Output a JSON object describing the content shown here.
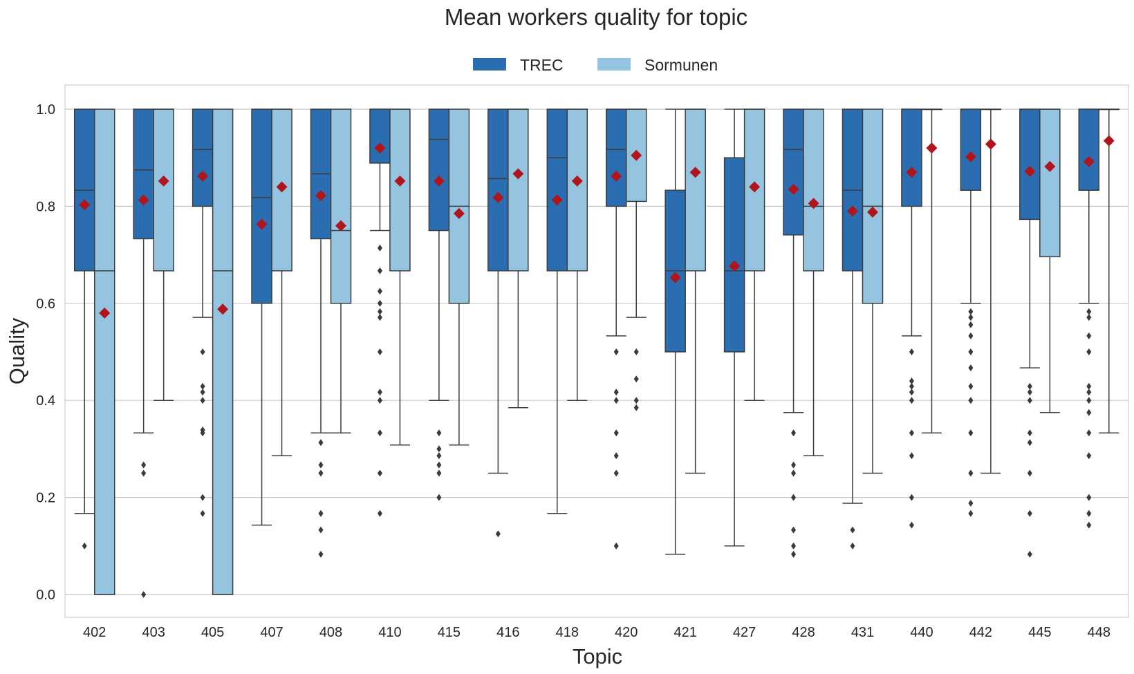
{
  "chart_data": {
    "type": "box",
    "title": "Mean workers quality for topic",
    "xlabel": "Topic",
    "ylabel": "Quality",
    "ylim": [
      -0.05,
      1.05
    ],
    "yticks": [
      0.0,
      0.2,
      0.4,
      0.6,
      0.8,
      1.0
    ],
    "ytick_labels": [
      "0.0",
      "0.2",
      "0.4",
      "0.6",
      "0.8",
      "1.0"
    ],
    "grid": "horizontal",
    "legend_position": "top-center",
    "categories": [
      "402",
      "403",
      "405",
      "407",
      "408",
      "410",
      "415",
      "416",
      "418",
      "420",
      "421",
      "427",
      "428",
      "431",
      "440",
      "442",
      "445",
      "448"
    ],
    "series": [
      {
        "name": "TREC",
        "color": "#2a6db1",
        "boxes": [
          {
            "q1": 0.667,
            "median": 0.833,
            "q3": 1.0,
            "whisker_low": 0.167,
            "whisker_high": 1.0,
            "mean": 0.803,
            "outliers": [
              0.1
            ]
          },
          {
            "q1": 0.733,
            "median": 0.875,
            "q3": 1.0,
            "whisker_low": 0.333,
            "whisker_high": 1.0,
            "mean": 0.813,
            "outliers": [
              0.0,
              0.25,
              0.267
            ]
          },
          {
            "q1": 0.8,
            "median": 0.917,
            "q3": 1.0,
            "whisker_low": 0.571,
            "whisker_high": 1.0,
            "mean": 0.862,
            "outliers": [
              0.167,
              0.2,
              0.333,
              0.339,
              0.4,
              0.417,
              0.429,
              0.5
            ]
          },
          {
            "q1": 0.6,
            "median": 0.818,
            "q3": 1.0,
            "whisker_low": 0.143,
            "whisker_high": 1.0,
            "mean": 0.763,
            "outliers": []
          },
          {
            "q1": 0.733,
            "median": 0.867,
            "q3": 1.0,
            "whisker_low": 0.333,
            "whisker_high": 1.0,
            "mean": 0.822,
            "outliers": [
              0.083,
              0.133,
              0.167,
              0.25,
              0.267,
              0.313
            ]
          },
          {
            "q1": 0.889,
            "median": 1.0,
            "q3": 1.0,
            "whisker_low": 0.75,
            "whisker_high": 1.0,
            "mean": 0.92,
            "outliers": [
              0.167,
              0.25,
              0.333,
              0.4,
              0.417,
              0.5,
              0.571,
              0.583,
              0.6,
              0.625,
              0.667,
              0.714
            ]
          },
          {
            "q1": 0.75,
            "median": 0.938,
            "q3": 1.0,
            "whisker_low": 0.4,
            "whisker_high": 1.0,
            "mean": 0.852,
            "outliers": [
              0.2,
              0.25,
              0.267,
              0.286,
              0.3,
              0.333
            ]
          },
          {
            "q1": 0.667,
            "median": 0.857,
            "q3": 1.0,
            "whisker_low": 0.25,
            "whisker_high": 1.0,
            "mean": 0.818,
            "outliers": [
              0.125
            ]
          },
          {
            "q1": 0.667,
            "median": 0.9,
            "q3": 1.0,
            "whisker_low": 0.167,
            "whisker_high": 1.0,
            "mean": 0.813,
            "outliers": []
          },
          {
            "q1": 0.8,
            "median": 0.917,
            "q3": 1.0,
            "whisker_low": 0.533,
            "whisker_high": 1.0,
            "mean": 0.862,
            "outliers": [
              0.1,
              0.25,
              0.286,
              0.333,
              0.4,
              0.417,
              0.5
            ]
          },
          {
            "q1": 0.5,
            "median": 0.667,
            "q3": 0.833,
            "whisker_low": 0.083,
            "whisker_high": 1.0,
            "mean": 0.653,
            "outliers": []
          },
          {
            "q1": 0.5,
            "median": 0.667,
            "q3": 0.9,
            "whisker_low": 0.1,
            "whisker_high": 1.0,
            "mean": 0.677,
            "outliers": []
          },
          {
            "q1": 0.741,
            "median": 0.917,
            "q3": 1.0,
            "whisker_low": 0.375,
            "whisker_high": 1.0,
            "mean": 0.835,
            "outliers": [
              0.083,
              0.1,
              0.133,
              0.2,
              0.25,
              0.267,
              0.333
            ]
          },
          {
            "q1": 0.667,
            "median": 0.833,
            "q3": 1.0,
            "whisker_low": 0.188,
            "whisker_high": 1.0,
            "mean": 0.79,
            "outliers": [
              0.1,
              0.133
            ]
          },
          {
            "q1": 0.8,
            "median": 1.0,
            "q3": 1.0,
            "whisker_low": 0.533,
            "whisker_high": 1.0,
            "mean": 0.87,
            "outliers": [
              0.143,
              0.2,
              0.286,
              0.333,
              0.4,
              0.417,
              0.429,
              0.44,
              0.5
            ]
          },
          {
            "q1": 0.833,
            "median": 1.0,
            "q3": 1.0,
            "whisker_low": 0.6,
            "whisker_high": 1.0,
            "mean": 0.902,
            "outliers": [
              0.167,
              0.188,
              0.25,
              0.333,
              0.4,
              0.429,
              0.467,
              0.5,
              0.533,
              0.556,
              0.571,
              0.583
            ]
          },
          {
            "q1": 0.773,
            "median": 1.0,
            "q3": 1.0,
            "whisker_low": 0.467,
            "whisker_high": 1.0,
            "mean": 0.872,
            "outliers": [
              0.083,
              0.167,
              0.25,
              0.313,
              0.333,
              0.4,
              0.417,
              0.429
            ]
          },
          {
            "q1": 0.833,
            "median": 1.0,
            "q3": 1.0,
            "whisker_low": 0.6,
            "whisker_high": 1.0,
            "mean": 0.892,
            "outliers": [
              0.143,
              0.167,
              0.2,
              0.286,
              0.333,
              0.375,
              0.4,
              0.417,
              0.429,
              0.5,
              0.533,
              0.571,
              0.583
            ]
          }
        ]
      },
      {
        "name": "Sormunen",
        "color": "#94c4df",
        "boxes": [
          {
            "q1": 0.0,
            "median": 0.667,
            "q3": 1.0,
            "whisker_low": 0.0,
            "whisker_high": 1.0,
            "mean": 0.58,
            "outliers": []
          },
          {
            "q1": 0.667,
            "median": 1.0,
            "q3": 1.0,
            "whisker_low": 0.4,
            "whisker_high": 1.0,
            "mean": 0.852,
            "outliers": []
          },
          {
            "q1": 0.0,
            "median": 0.667,
            "q3": 1.0,
            "whisker_low": 0.0,
            "whisker_high": 1.0,
            "mean": 0.588,
            "outliers": []
          },
          {
            "q1": 0.667,
            "median": 1.0,
            "q3": 1.0,
            "whisker_low": 0.286,
            "whisker_high": 1.0,
            "mean": 0.84,
            "outliers": []
          },
          {
            "q1": 0.6,
            "median": 0.75,
            "q3": 1.0,
            "whisker_low": 0.333,
            "whisker_high": 1.0,
            "mean": 0.76,
            "outliers": []
          },
          {
            "q1": 0.667,
            "median": 1.0,
            "q3": 1.0,
            "whisker_low": 0.308,
            "whisker_high": 1.0,
            "mean": 0.852,
            "outliers": []
          },
          {
            "q1": 0.6,
            "median": 0.8,
            "q3": 1.0,
            "whisker_low": 0.308,
            "whisker_high": 1.0,
            "mean": 0.785,
            "outliers": []
          },
          {
            "q1": 0.667,
            "median": 1.0,
            "q3": 1.0,
            "whisker_low": 0.385,
            "whisker_high": 1.0,
            "mean": 0.867,
            "outliers": []
          },
          {
            "q1": 0.667,
            "median": 1.0,
            "q3": 1.0,
            "whisker_low": 0.4,
            "whisker_high": 1.0,
            "mean": 0.852,
            "outliers": []
          },
          {
            "q1": 0.81,
            "median": 1.0,
            "q3": 1.0,
            "whisker_low": 0.571,
            "whisker_high": 1.0,
            "mean": 0.905,
            "outliers": [
              0.385,
              0.4,
              0.444,
              0.5
            ]
          },
          {
            "q1": 0.667,
            "median": 1.0,
            "q3": 1.0,
            "whisker_low": 0.25,
            "whisker_high": 1.0,
            "mean": 0.87,
            "outliers": []
          },
          {
            "q1": 0.667,
            "median": 1.0,
            "q3": 1.0,
            "whisker_low": 0.4,
            "whisker_high": 1.0,
            "mean": 0.84,
            "outliers": []
          },
          {
            "q1": 0.667,
            "median": 0.8,
            "q3": 1.0,
            "whisker_low": 0.286,
            "whisker_high": 1.0,
            "mean": 0.806,
            "outliers": []
          },
          {
            "q1": 0.6,
            "median": 0.8,
            "q3": 1.0,
            "whisker_low": 0.25,
            "whisker_high": 1.0,
            "mean": 0.788,
            "outliers": []
          },
          {
            "q1": 1.0,
            "median": 1.0,
            "q3": 1.0,
            "whisker_low": 0.333,
            "whisker_high": 1.0,
            "mean": 0.92,
            "outliers": []
          },
          {
            "q1": 1.0,
            "median": 1.0,
            "q3": 1.0,
            "whisker_low": 0.25,
            "whisker_high": 1.0,
            "mean": 0.928,
            "outliers": []
          },
          {
            "q1": 0.696,
            "median": 1.0,
            "q3": 1.0,
            "whisker_low": 0.375,
            "whisker_high": 1.0,
            "mean": 0.882,
            "outliers": []
          },
          {
            "q1": 1.0,
            "median": 1.0,
            "q3": 1.0,
            "whisker_low": 0.333,
            "whisker_high": 1.0,
            "mean": 0.935,
            "outliers": []
          }
        ]
      }
    ],
    "mean_marker_color": "#b0151b",
    "outlier_color": "#3a3a3a"
  }
}
